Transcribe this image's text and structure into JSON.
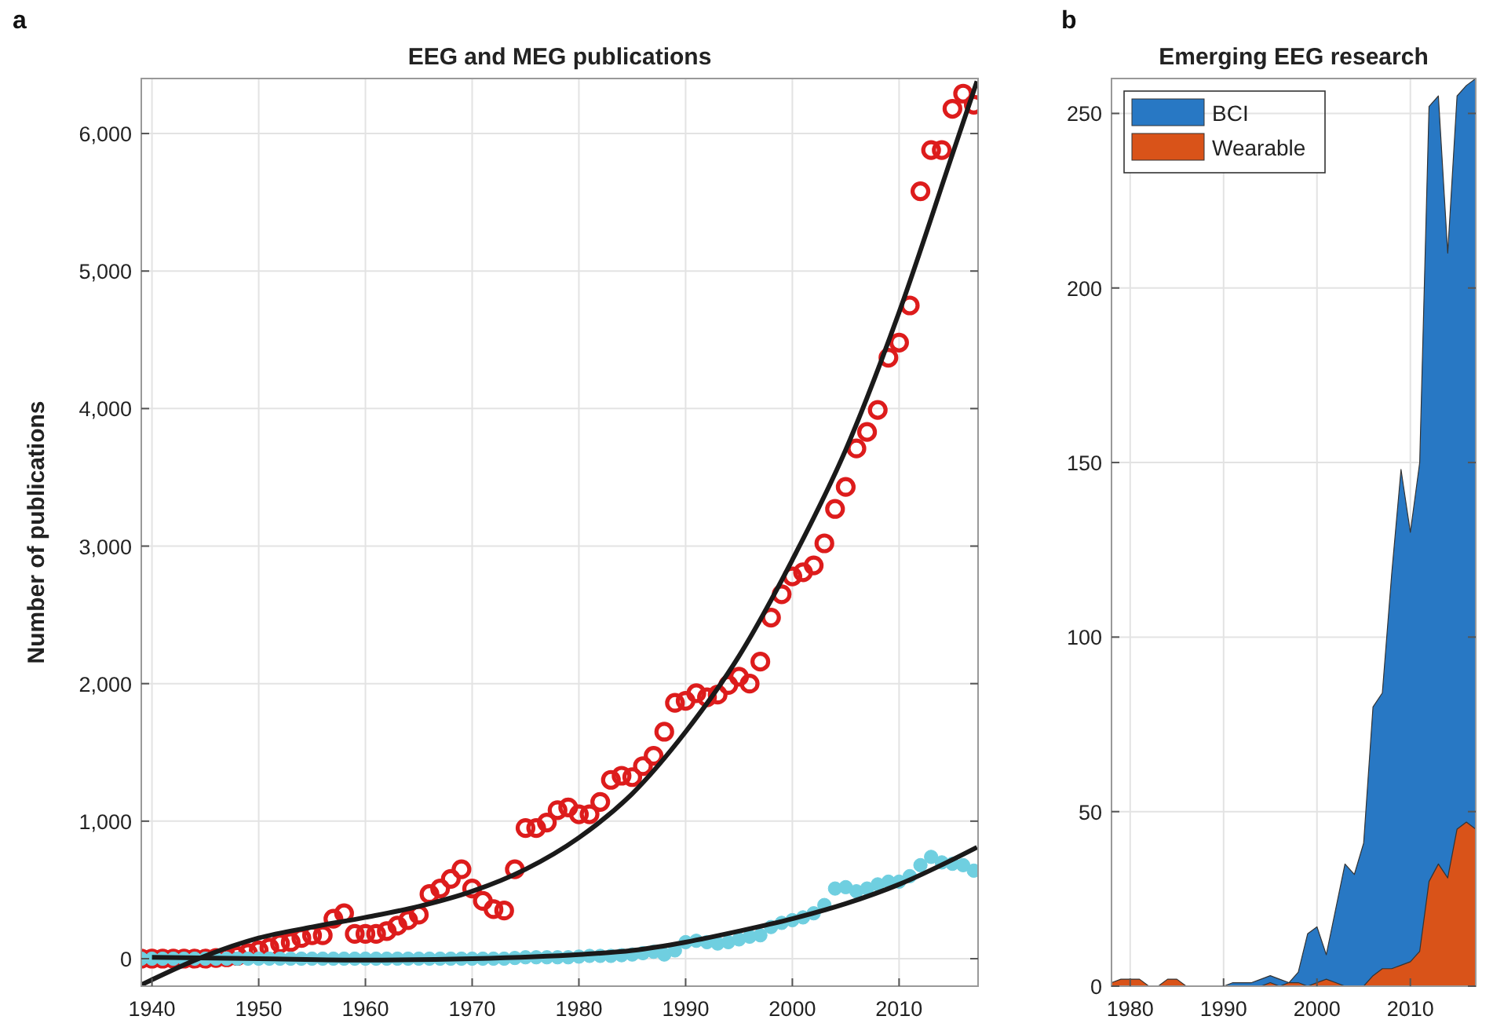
{
  "chart_data": [
    {
      "type": "scatter",
      "title": "EEG and MEG publications",
      "ylabel": "Number of publications",
      "annotations": [
        "a"
      ],
      "xlim": [
        1939,
        2017.4
      ],
      "xticks": [
        1940,
        1950,
        1960,
        1970,
        1980,
        1990,
        2000,
        2010
      ],
      "ylim": [
        -200,
        6400
      ],
      "yticks": [
        0,
        {
          "value": 1000,
          "label": "1,000"
        },
        {
          "value": 2000,
          "label": "2,000"
        },
        {
          "value": 3000,
          "label": "3,000"
        },
        {
          "value": 4000,
          "label": "4,000"
        },
        {
          "value": 5000,
          "label": "5,000"
        },
        {
          "value": 6000,
          "label": "6,000"
        }
      ],
      "grid": true,
      "marker": "circle",
      "legend": false,
      "series": [
        {
          "color": "#dd1c1c",
          "x": [
            1939,
            1940,
            1941,
            1942,
            1943,
            1944,
            1945,
            1946,
            1947,
            1948,
            1949,
            1950,
            1951,
            1952,
            1953,
            1954,
            1955,
            1956,
            1957,
            1958,
            1959,
            1960,
            1961,
            1962,
            1963,
            1964,
            1965,
            1966,
            1967,
            1968,
            1969,
            1970,
            1971,
            1972,
            1973,
            1974,
            1975,
            1976,
            1977,
            1978,
            1979,
            1980,
            1981,
            1982,
            1983,
            1984,
            1985,
            1986,
            1987,
            1988,
            1989,
            1990,
            1991,
            1992,
            1993,
            1994,
            1995,
            1996,
            1997,
            1998,
            1999,
            2000,
            2001,
            2002,
            2003,
            2004,
            2005,
            2006,
            2007,
            2008,
            2009,
            2010,
            2011,
            2012,
            2013,
            2014,
            2015,
            2016,
            2017
          ],
          "values": [
            0,
            0,
            0,
            0,
            0,
            0,
            0,
            5,
            10,
            20,
            40,
            60,
            80,
            110,
            120,
            150,
            170,
            170,
            290,
            330,
            180,
            180,
            180,
            200,
            240,
            280,
            320,
            470,
            510,
            580,
            650,
            510,
            420,
            360,
            350,
            650,
            950,
            950,
            990,
            1080,
            1100,
            1050,
            1050,
            1140,
            1300,
            1330,
            1320,
            1400,
            1475,
            1650,
            1860,
            1875,
            1930,
            1900,
            1920,
            1990,
            2050,
            2000,
            2160,
            2480,
            2650,
            2780,
            2810,
            2860,
            3020,
            3270,
            3430,
            3710,
            3830,
            3990,
            4370,
            4480,
            4750,
            5580,
            5880,
            5880,
            6180,
            6290,
            6210
          ]
        },
        {
          "color": "#6fcfe0",
          "x": [
            1939,
            1940,
            1941,
            1942,
            1943,
            1944,
            1945,
            1946,
            1947,
            1948,
            1949,
            1950,
            1951,
            1952,
            1953,
            1954,
            1955,
            1956,
            1957,
            1958,
            1959,
            1960,
            1961,
            1962,
            1963,
            1964,
            1965,
            1966,
            1967,
            1968,
            1969,
            1970,
            1971,
            1972,
            1973,
            1974,
            1975,
            1976,
            1977,
            1978,
            1979,
            1980,
            1981,
            1982,
            1983,
            1984,
            1985,
            1986,
            1987,
            1988,
            1989,
            1990,
            1991,
            1992,
            1993,
            1994,
            1995,
            1996,
            1997,
            1998,
            1999,
            2000,
            2001,
            2002,
            2003,
            2004,
            2005,
            2006,
            2007,
            2008,
            2009,
            2010,
            2011,
            2012,
            2013,
            2014,
            2015,
            2016,
            2017
          ],
          "values": [
            0,
            0,
            0,
            0,
            0,
            0,
            0,
            0,
            0,
            0,
            0,
            0,
            0,
            0,
            0,
            0,
            0,
            0,
            0,
            0,
            0,
            0,
            0,
            0,
            0,
            0,
            0,
            0,
            0,
            0,
            0,
            0,
            0,
            0,
            0,
            5,
            10,
            10,
            10,
            10,
            10,
            15,
            20,
            20,
            20,
            25,
            30,
            40,
            50,
            30,
            60,
            120,
            130,
            120,
            110,
            120,
            140,
            160,
            170,
            230,
            260,
            280,
            300,
            330,
            390,
            510,
            520,
            490,
            510,
            540,
            560,
            560,
            600,
            680,
            740,
            700,
            690,
            680,
            640
          ]
        },
        {
          "type": "line",
          "marker": "none",
          "color": "#1a1a1a",
          "x": [
            1939,
            1945,
            1950,
            1955,
            1960,
            1965,
            1970,
            1975,
            1980,
            1985,
            1990,
            1995,
            2000,
            2005,
            2010,
            2015,
            2017.3
          ],
          "values": [
            -190,
            20,
            150,
            230,
            300,
            380,
            490,
            650,
            880,
            1200,
            1650,
            2200,
            2900,
            3700,
            4700,
            5850,
            6380
          ]
        },
        {
          "type": "line",
          "marker": "none",
          "color": "#1a1a1a",
          "x": [
            1940,
            1950,
            1960,
            1970,
            1980,
            1985,
            1990,
            1995,
            2000,
            2005,
            2010,
            2015,
            2017.3
          ],
          "values": [
            10,
            0,
            -10,
            0,
            30,
            60,
            120,
            200,
            290,
            400,
            540,
            720,
            810
          ]
        }
      ]
    },
    {
      "type": "area",
      "title": "Emerging EEG research",
      "annotations": [
        "b"
      ],
      "xlim": [
        1978,
        2017
      ],
      "xticks": [
        1980,
        1990,
        2000,
        2010
      ],
      "ylim": [
        0,
        260
      ],
      "yticks": [
        0,
        50,
        100,
        150,
        200,
        250
      ],
      "grid": true,
      "legend": "top left",
      "x": [
        1978,
        1979,
        1980,
        1981,
        1982,
        1983,
        1984,
        1985,
        1986,
        1987,
        1988,
        1989,
        1990,
        1991,
        1992,
        1993,
        1994,
        1995,
        1996,
        1997,
        1998,
        1999,
        2000,
        2001,
        2002,
        2003,
        2004,
        2005,
        2006,
        2007,
        2008,
        2009,
        2010,
        2011,
        2012,
        2013,
        2014,
        2015,
        2016,
        2017
      ],
      "series": [
        {
          "name": "BCI",
          "color": "#2878c4",
          "values": [
            0,
            0,
            0,
            0,
            0,
            0,
            0,
            0,
            0,
            0,
            0,
            0,
            0,
            1,
            1,
            1,
            2,
            3,
            2,
            1,
            4,
            15,
            17,
            9,
            22,
            35,
            32,
            41,
            80,
            84,
            118,
            148,
            130,
            150,
            252,
            255,
            210,
            255,
            258,
            260
          ]
        },
        {
          "name": "Wearable",
          "color": "#d95319",
          "values": [
            1,
            2,
            2,
            2,
            0,
            0,
            2,
            2,
            0,
            0,
            0,
            0,
            0,
            0,
            0,
            0,
            0,
            1,
            0,
            1,
            1,
            0,
            1,
            2,
            1,
            0,
            0,
            0,
            3,
            5,
            5,
            6,
            7,
            10,
            30,
            35,
            31,
            45,
            47,
            45
          ]
        }
      ]
    }
  ]
}
